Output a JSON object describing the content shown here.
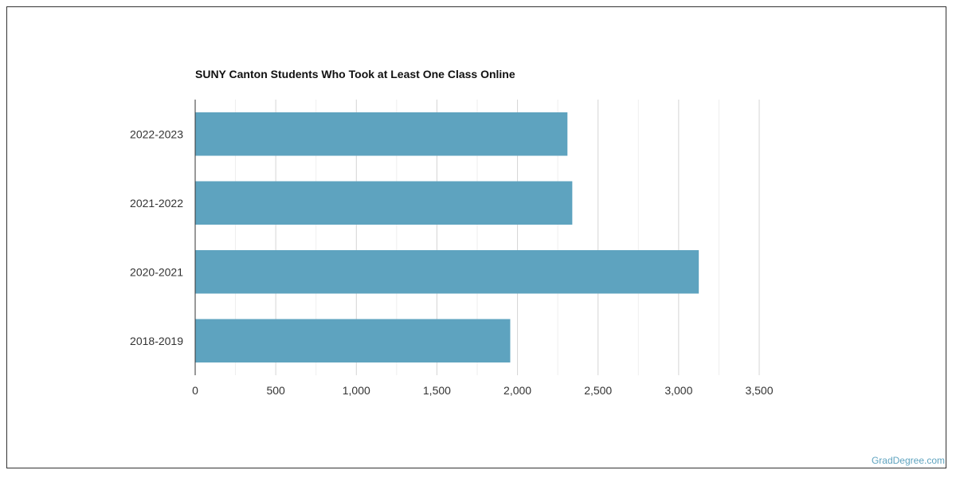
{
  "source_credit": "GradDegree.com",
  "chart_data": {
    "type": "bar",
    "orientation": "horizontal",
    "title": "SUNY Canton Students Who Took at Least One Class Online",
    "categories": [
      "2022-2023",
      "2021-2022",
      "2020-2021",
      "2018-2019"
    ],
    "values": [
      2310,
      2340,
      3125,
      1955
    ],
    "xlim": [
      0,
      3500
    ],
    "x_ticks": [
      0,
      500,
      1000,
      1500,
      2000,
      2500,
      3000,
      3500
    ],
    "x_tick_labels": [
      "0",
      "500",
      "1,000",
      "1,500",
      "2,000",
      "2,500",
      "3,000",
      "3,500"
    ],
    "grid": true,
    "bar_color": "#5ea3bf",
    "grid_color": "#dddddd"
  }
}
